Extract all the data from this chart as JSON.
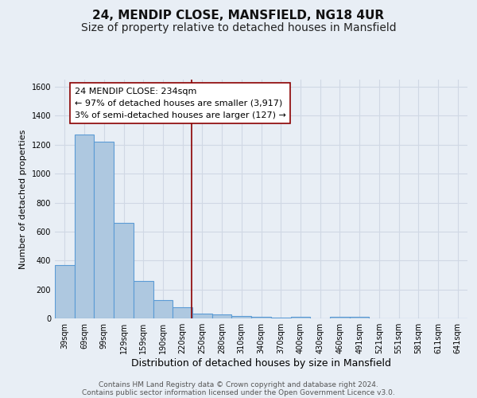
{
  "title": "24, MENDIP CLOSE, MANSFIELD, NG18 4UR",
  "subtitle": "Size of property relative to detached houses in Mansfield",
  "xlabel": "Distribution of detached houses by size in Mansfield",
  "ylabel": "Number of detached properties",
  "categories": [
    "39sqm",
    "69sqm",
    "99sqm",
    "129sqm",
    "159sqm",
    "190sqm",
    "220sqm",
    "250sqm",
    "280sqm",
    "310sqm",
    "340sqm",
    "370sqm",
    "400sqm",
    "430sqm",
    "460sqm",
    "491sqm",
    "521sqm",
    "551sqm",
    "581sqm",
    "611sqm",
    "641sqm"
  ],
  "values": [
    370,
    1270,
    1220,
    660,
    260,
    125,
    75,
    35,
    25,
    15,
    10,
    5,
    10,
    0,
    10,
    10,
    0,
    0,
    0,
    0,
    0
  ],
  "bar_color": "#aec8e0",
  "bar_edge_color": "#5b9bd5",
  "background_color": "#e8eef5",
  "grid_color": "#d0d8e4",
  "vline_color": "#8b0000",
  "annotation_text": "24 MENDIP CLOSE: 234sqm\n← 97% of detached houses are smaller (3,917)\n3% of semi-detached houses are larger (127) →",
  "annotation_box_color": "#ffffff",
  "annotation_box_edge": "#8b0000",
  "ylim": [
    0,
    1650
  ],
  "yticks": [
    0,
    200,
    400,
    600,
    800,
    1000,
    1200,
    1400,
    1600
  ],
  "footer_line1": "Contains HM Land Registry data © Crown copyright and database right 2024.",
  "footer_line2": "Contains public sector information licensed under the Open Government Licence v3.0.",
  "title_fontsize": 11,
  "subtitle_fontsize": 10,
  "xlabel_fontsize": 9,
  "ylabel_fontsize": 8,
  "tick_fontsize": 7,
  "annotation_fontsize": 8,
  "footer_fontsize": 6.5
}
